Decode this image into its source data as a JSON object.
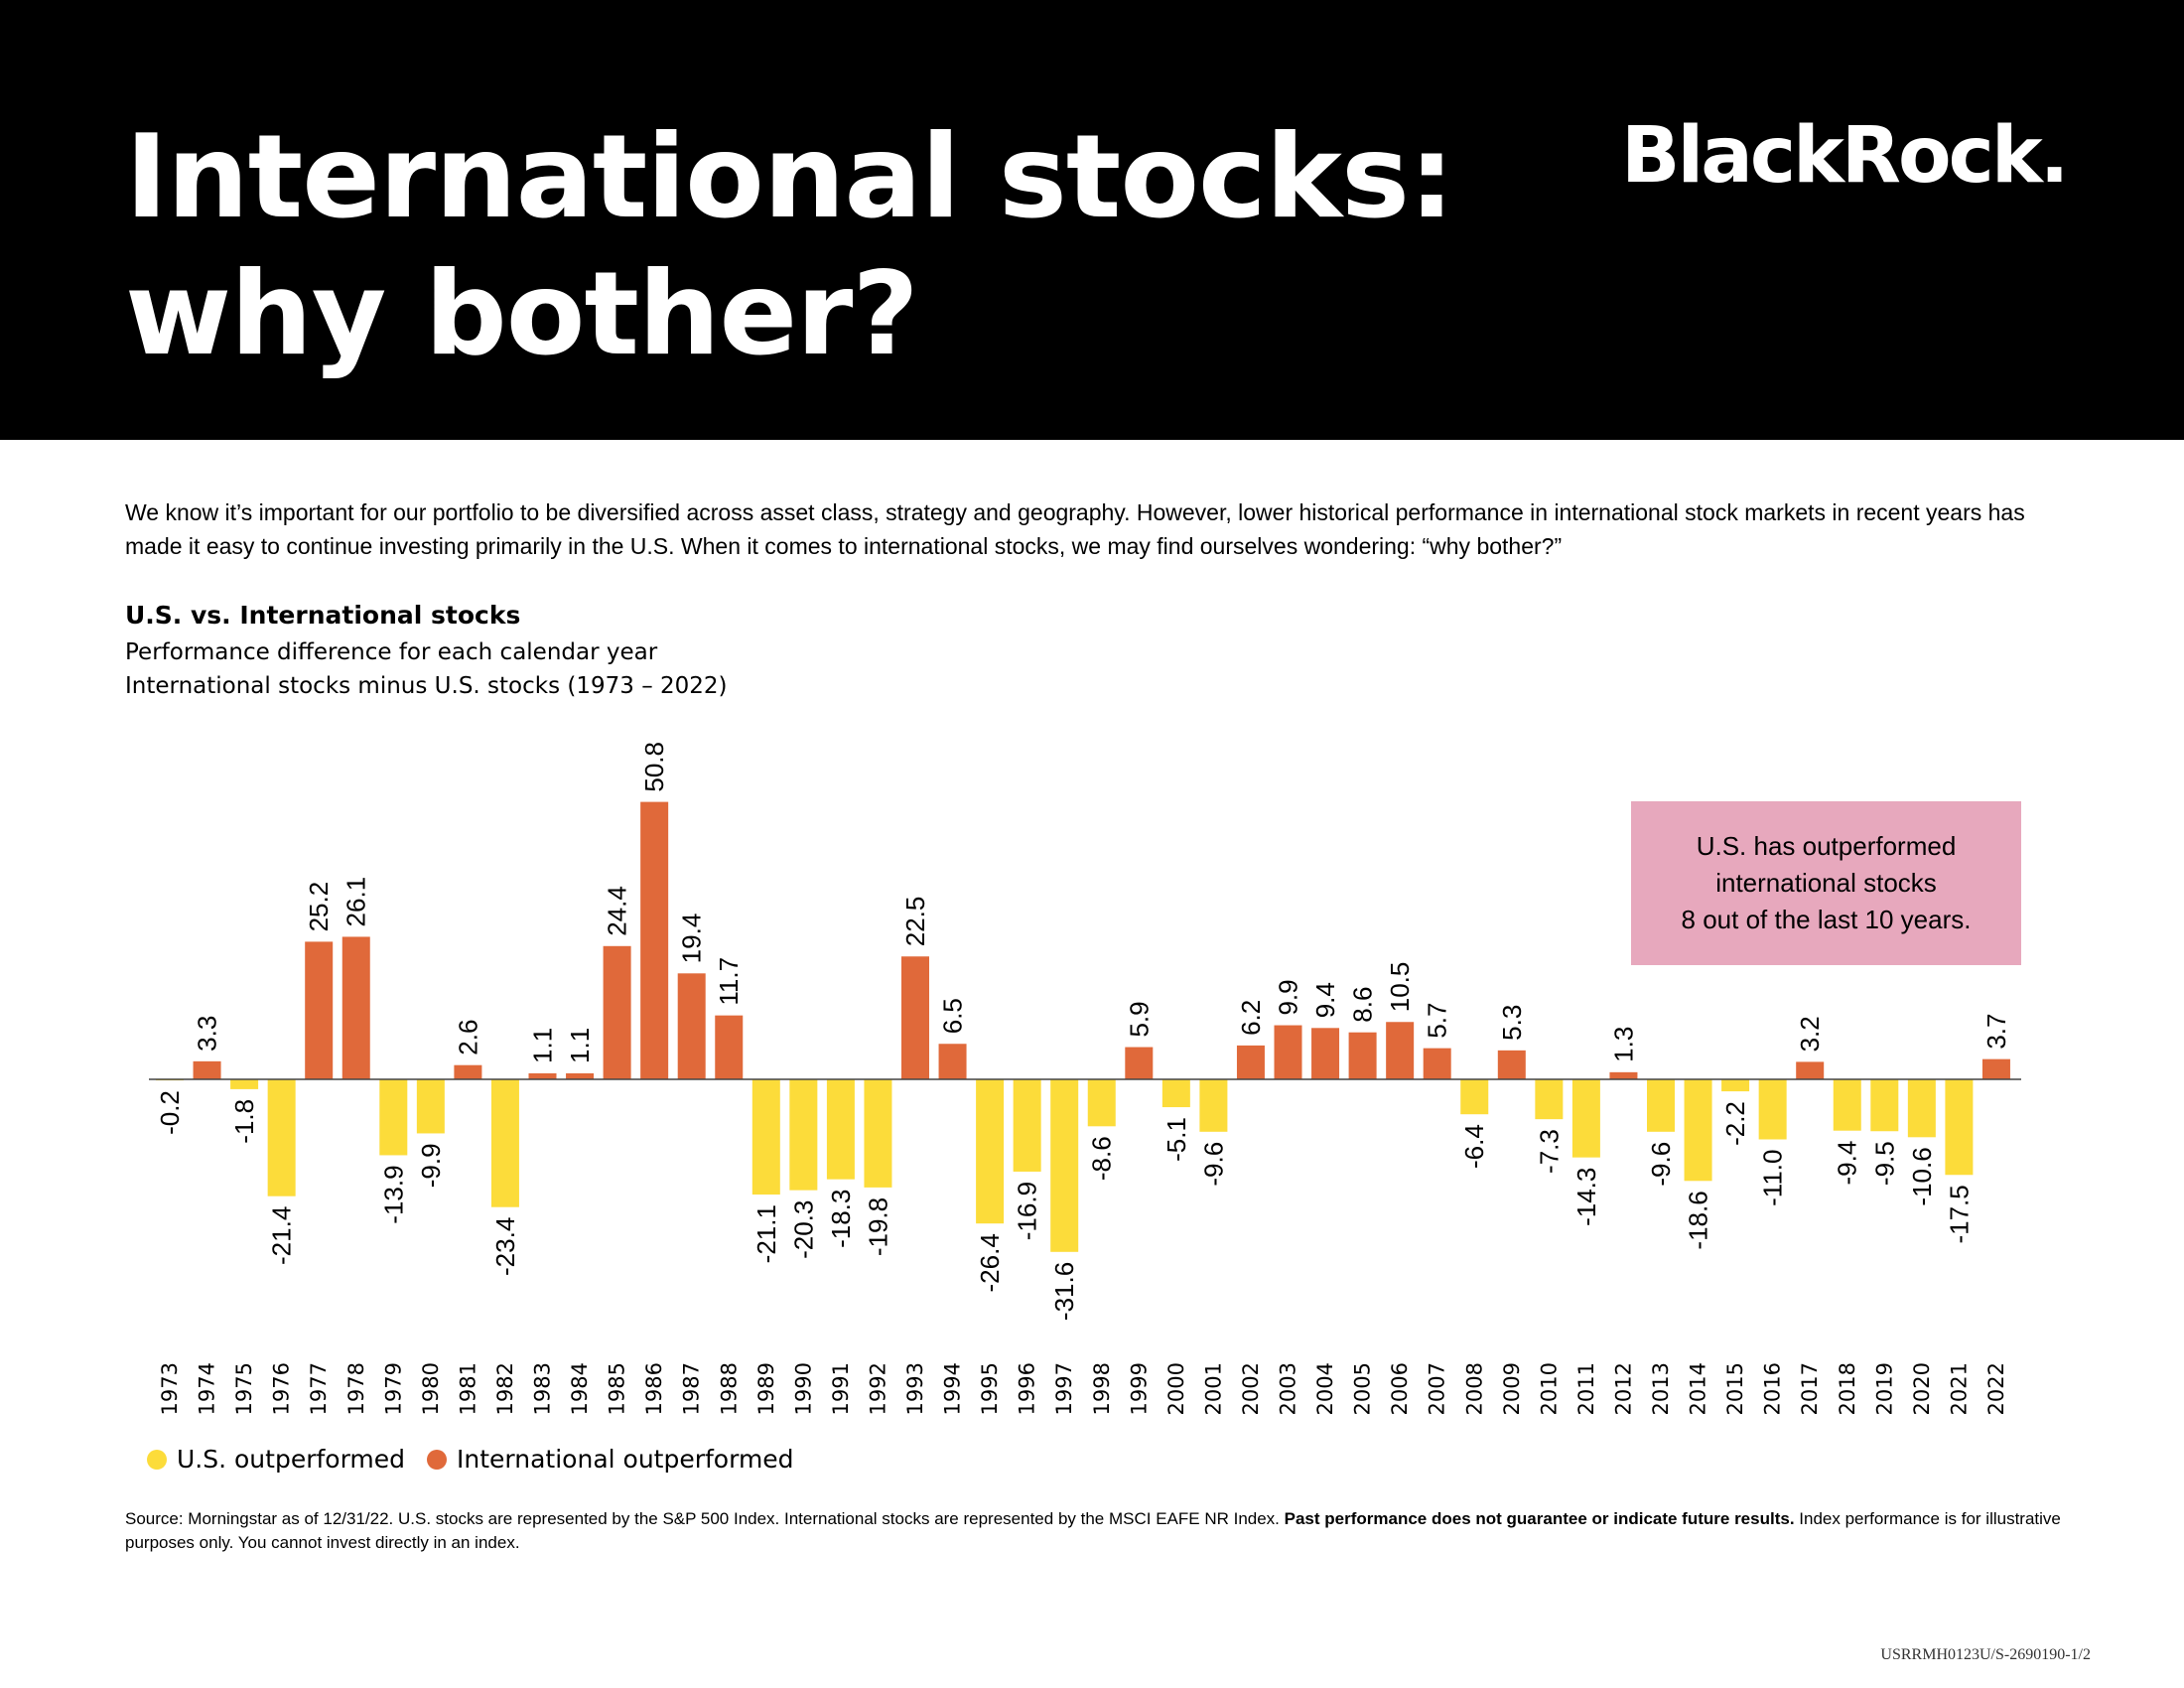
{
  "title_lines": [
    "International stocks:",
    "why bother?"
  ],
  "brand": "BlackRock.",
  "intro": "We know it’s important for our portfolio to be diversified across asset class, strategy and geography. However, lower historical performance in international stock markets in recent years has made it easy to continue investing primarily in the U.S. When it comes to international stocks, we may find ourselves wondering: “why bother?”",
  "chart_heading": "U.S. vs. International stocks",
  "chart_subtitle_1": "Performance difference for each calendar year",
  "chart_subtitle_2": "International stocks minus U.S. stocks (1973 – 2022)",
  "callout_lines": [
    "U.S. has outperformed",
    "international stocks",
    "8 out of the last 10 years."
  ],
  "legend": {
    "us_label": "U.S. outperformed",
    "intl_label": "International outperformed"
  },
  "source": {
    "part1": "Source: Morningstar as of 12/31/22. U.S. stocks are represented by the S&P 500 Index. International stocks are represented by the MSCI EAFE NR Index. ",
    "bold": "Past performance does not guarantee or indicate future results.",
    "part2": " Index performance is for illustrative purposes only. You cannot invest directly in an index."
  },
  "doc_code": "USRRMH0123U/S-2690190-1/2",
  "colors": {
    "us": "#fcdc3a",
    "intl": "#e0693a",
    "callout": "#e7a8bd"
  },
  "chart_data": {
    "type": "bar",
    "categories": [
      "1973",
      "1974",
      "1975",
      "1976",
      "1977",
      "1978",
      "1979",
      "1980",
      "1981",
      "1982",
      "1983",
      "1984",
      "1985",
      "1986",
      "1987",
      "1988",
      "1989",
      "1990",
      "1991",
      "1992",
      "1993",
      "1994",
      "1995",
      "1996",
      "1997",
      "1998",
      "1999",
      "2000",
      "2001",
      "2002",
      "2003",
      "2004",
      "2005",
      "2006",
      "2007",
      "2008",
      "2009",
      "2010",
      "2011",
      "2012",
      "2013",
      "2014",
      "2015",
      "2016",
      "2017",
      "2018",
      "2019",
      "2020",
      "2021",
      "2022"
    ],
    "values": [
      -0.2,
      3.3,
      -1.8,
      -21.4,
      25.2,
      26.1,
      -13.9,
      -9.9,
      2.6,
      -23.4,
      1.1,
      1.1,
      24.4,
      50.8,
      19.4,
      11.7,
      -21.1,
      -20.3,
      -18.3,
      -19.8,
      22.5,
      6.5,
      -26.4,
      -16.9,
      -31.6,
      -8.6,
      5.9,
      -5.1,
      -9.6,
      6.2,
      9.9,
      9.4,
      8.6,
      10.5,
      5.7,
      -6.4,
      5.3,
      -7.3,
      -14.3,
      1.3,
      -9.6,
      -18.6,
      -2.2,
      -11.0,
      3.2,
      -9.4,
      -9.5,
      -10.6,
      -17.5,
      3.7
    ],
    "labels": [
      "-0.2",
      "3.3",
      "-1.8",
      "-21.4",
      "25.2",
      "26.1",
      "-13.9",
      "-9.9",
      "2.6",
      "-23.4",
      "1.1",
      "1.1",
      "24.4",
      "50.8",
      "19.4",
      "11.7",
      "-21.1",
      "-20.3",
      "-18.3",
      "-19.8",
      "22.5",
      "6.5",
      "-26.4",
      "-16.9",
      "-31.6",
      "-8.6",
      "5.9",
      "-5.1",
      "-9.6",
      "6.2",
      "9.9",
      "9.4",
      "8.6",
      "10.5",
      "5.7",
      "-6.4",
      "5.3",
      "-7.3",
      "-14.3",
      "1.3",
      "-9.6",
      "-18.6",
      "-2.2",
      "-11.0",
      "3.2",
      "-9.4",
      "-9.5",
      "-10.6",
      "-17.5",
      "3.7"
    ],
    "title": "U.S. vs. International stocks",
    "xlabel": "",
    "ylabel": "",
    "grid": false,
    "legend_position": "bottom-left"
  }
}
